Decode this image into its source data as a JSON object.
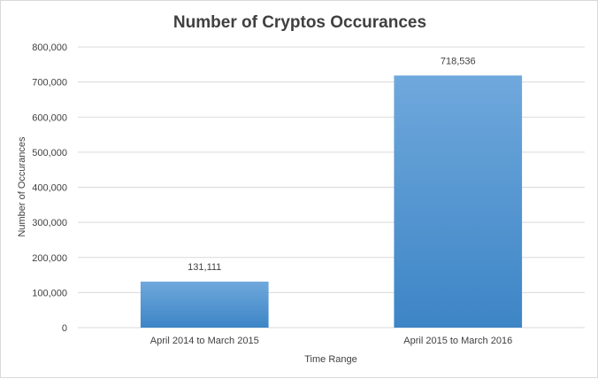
{
  "chart_data": {
    "type": "bar",
    "title": "Number of Cryptos  Occurances",
    "xlabel": "Time Range",
    "ylabel": "Number of Occurances",
    "categories": [
      "April 2014 to March 2015",
      "April 2015 to March 2016"
    ],
    "values": [
      131111,
      718536
    ],
    "value_labels": [
      "131,111",
      "718,536"
    ],
    "ylim": [
      0,
      800000
    ],
    "yticks": [
      0,
      100000,
      200000,
      300000,
      400000,
      500000,
      600000,
      700000,
      800000
    ],
    "ytick_labels": [
      "0",
      "100,000",
      "200,000",
      "300,000",
      "400,000",
      "500,000",
      "600,000",
      "700,000",
      "800,000"
    ],
    "grid": true,
    "legend": false,
    "colors": {
      "bar_top": "#6fa8dc",
      "bar_bottom": "#3d85c6",
      "grid": "#d9d9d9",
      "text": "#404040"
    }
  }
}
